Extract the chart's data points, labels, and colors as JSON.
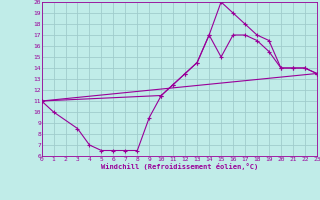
{
  "xlabel": "Windchill (Refroidissement éolien,°C)",
  "bg_color": "#c0ece8",
  "grid_color": "#a0cccc",
  "line_color": "#990099",
  "xlim": [
    0,
    23
  ],
  "ylim": [
    6,
    20
  ],
  "xticks": [
    0,
    1,
    2,
    3,
    4,
    5,
    6,
    7,
    8,
    9,
    10,
    11,
    12,
    13,
    14,
    15,
    16,
    17,
    18,
    19,
    20,
    21,
    22,
    23
  ],
  "yticks": [
    6,
    7,
    8,
    9,
    10,
    11,
    12,
    13,
    14,
    15,
    16,
    17,
    18,
    19,
    20
  ],
  "curves": [
    {
      "x": [
        0,
        1,
        3,
        4,
        5,
        6,
        7,
        8,
        9,
        10,
        11,
        12,
        13,
        14,
        15,
        16,
        17,
        18,
        19,
        20,
        21,
        22,
        23
      ],
      "y": [
        11,
        10,
        8.5,
        7,
        6.5,
        6.5,
        6.5,
        6.5,
        9.5,
        11.5,
        12.5,
        13.5,
        14.5,
        17,
        20,
        19,
        18,
        17,
        16.5,
        14,
        14,
        14,
        13.5
      ]
    },
    {
      "x": [
        0,
        10,
        11,
        12,
        13,
        14,
        15,
        16,
        17,
        18,
        19,
        20,
        21,
        22,
        23
      ],
      "y": [
        11,
        11.5,
        12.5,
        13.5,
        14.5,
        17,
        15,
        17,
        17,
        16.5,
        15.5,
        14,
        14,
        14,
        13.5
      ]
    },
    {
      "x": [
        0,
        23
      ],
      "y": [
        11,
        13.5
      ]
    }
  ]
}
